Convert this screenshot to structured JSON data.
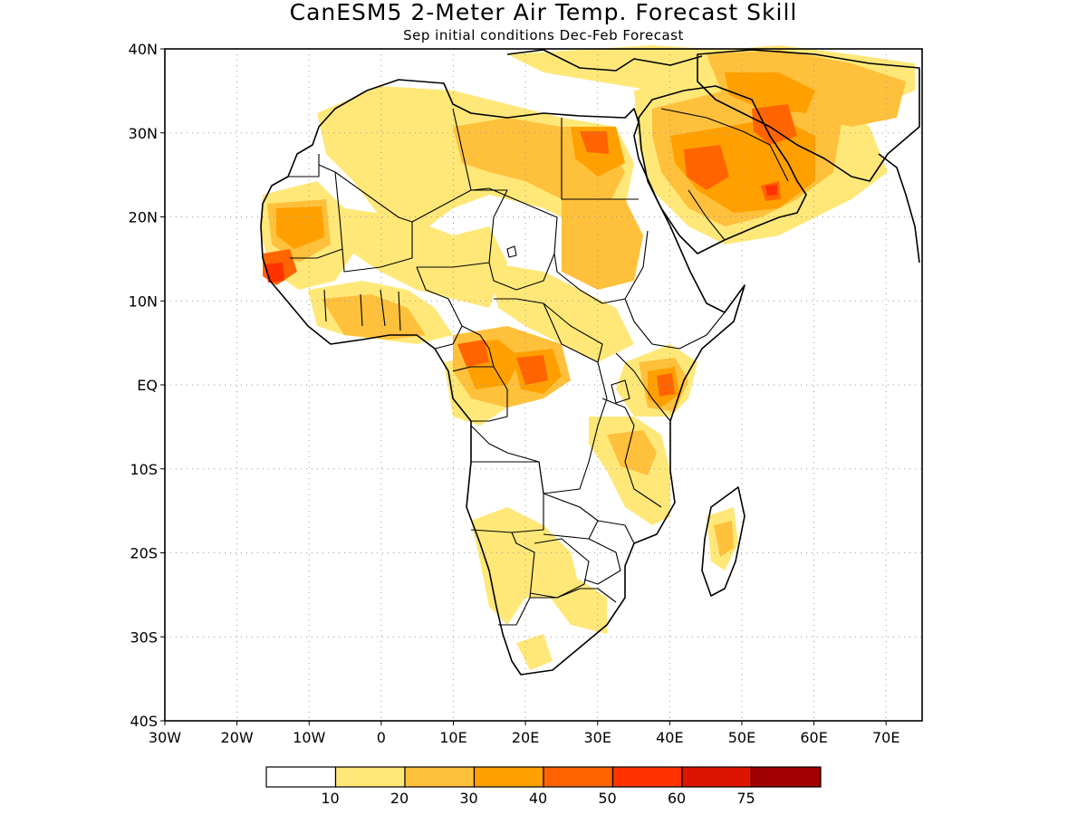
{
  "title": "CanESM5 2-Meter Air Temp. Forecast Skill",
  "subtitle": "Sep initial conditions  Dec-Feb Forecast",
  "map": {
    "lon_range": [
      -30,
      75
    ],
    "lat_range": [
      -40,
      40
    ],
    "grid": "dotted",
    "lat_ticks": [
      {
        "lat": 40,
        "label": "40N"
      },
      {
        "lat": 30,
        "label": "30N"
      },
      {
        "lat": 20,
        "label": "20N"
      },
      {
        "lat": 10,
        "label": "10N"
      },
      {
        "lat": 0,
        "label": "EQ"
      },
      {
        "lat": -10,
        "label": "10S"
      },
      {
        "lat": -20,
        "label": "20S"
      },
      {
        "lat": -30,
        "label": "30S"
      },
      {
        "lat": -40,
        "label": "40S"
      }
    ],
    "lon_ticks": [
      {
        "lon": -30,
        "label": "30W"
      },
      {
        "lon": -20,
        "label": "20W"
      },
      {
        "lon": -10,
        "label": "10W"
      },
      {
        "lon": 0,
        "label": "0"
      },
      {
        "lon": 10,
        "label": "10E"
      },
      {
        "lon": 20,
        "label": "20E"
      },
      {
        "lon": 30,
        "label": "30E"
      },
      {
        "lon": 40,
        "label": "40E"
      },
      {
        "lon": 50,
        "label": "50E"
      },
      {
        "lon": 60,
        "label": "60E"
      },
      {
        "lon": 70,
        "label": "70E"
      }
    ]
  },
  "colorbar": {
    "colors": [
      "#ffffff",
      "#ffe878",
      "#ffc03c",
      "#ffa000",
      "#ff6400",
      "#ff3200",
      "#dc1400",
      "#a00000"
    ],
    "labels": [
      "10",
      "20",
      "30",
      "40",
      "50",
      "60",
      "75"
    ]
  }
}
